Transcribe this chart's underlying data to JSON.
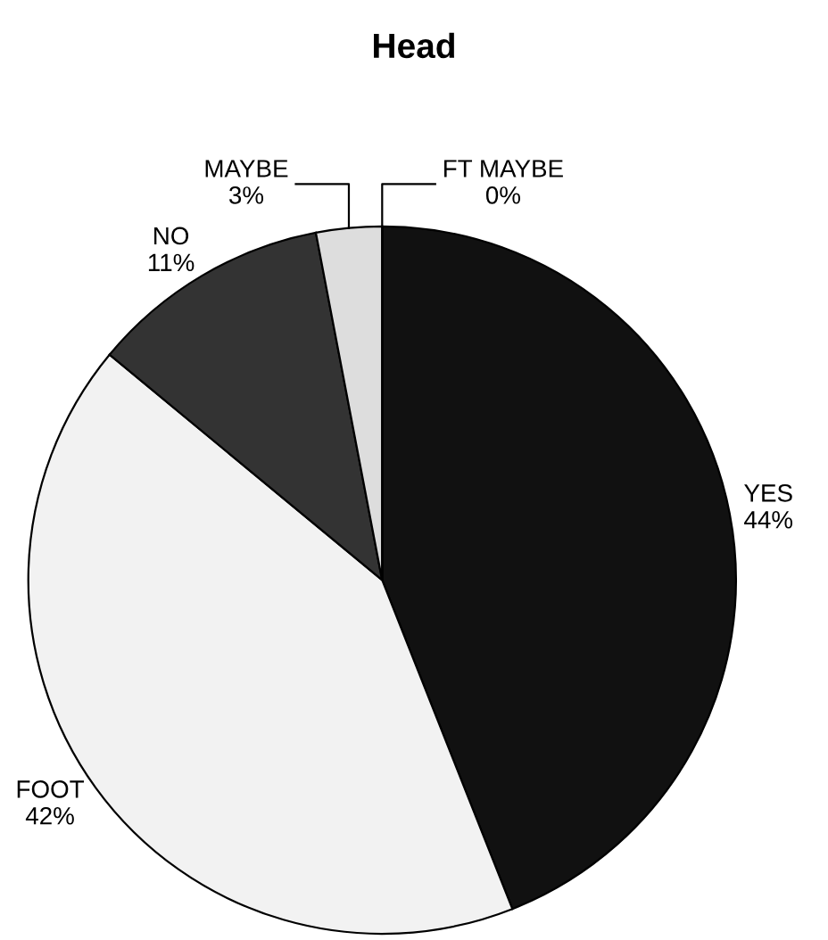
{
  "chart_data": {
    "type": "pie",
    "title": "Head",
    "categories": [
      "YES",
      "FOOT",
      "NO",
      "MAYBE",
      "FT MAYBE"
    ],
    "values": [
      44,
      42,
      11,
      3,
      0
    ],
    "colors": [
      "#111111",
      "#f2f2f2",
      "#333333",
      "#dddddd",
      "#ffffff"
    ],
    "value_labels": [
      "44%",
      "42%",
      "11%",
      "3%",
      "0%"
    ],
    "legend": false
  }
}
